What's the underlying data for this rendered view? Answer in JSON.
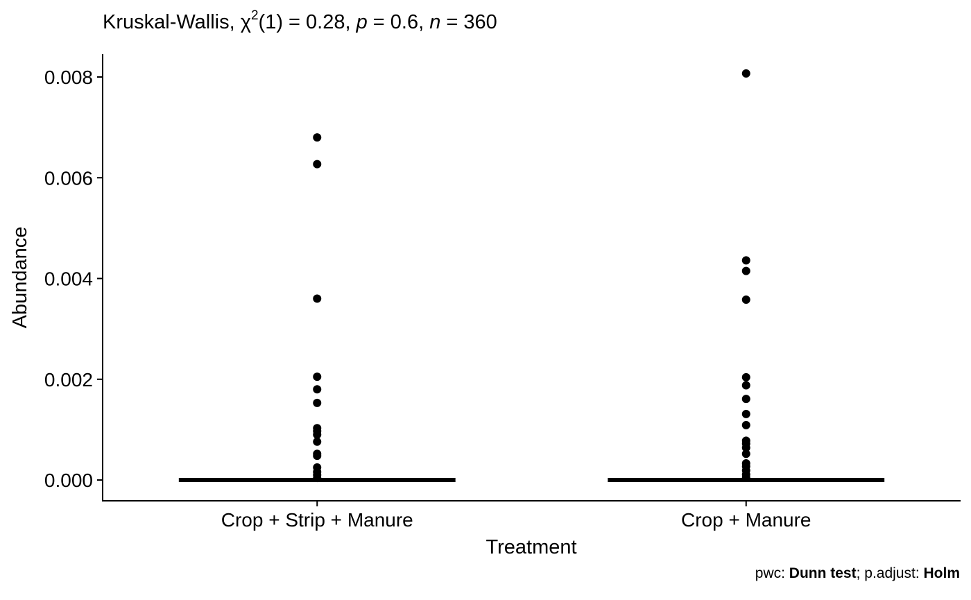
{
  "chart_data": {
    "type": "scatter",
    "title": {
      "test": "Kruskal-Wallis, ",
      "chi": "χ",
      "chi_sup": "2",
      "stat": "(1) = 0.28, ",
      "p_sym": "p",
      "p_val": " = 0.6, ",
      "n_sym": "n",
      "n_val": " = 360"
    },
    "caption": {
      "pwc_label": "pwc: ",
      "pwc_method": "Dunn test",
      "sep": "; p.adjust: ",
      "adjust_method": "Holm"
    },
    "xlabel": "Treatment",
    "ylabel": "Abundance",
    "categories": [
      "Crop + Strip + Manure",
      "Crop + Manure"
    ],
    "ylim": [
      -0.0004,
      0.0085
    ],
    "y_ticks": [
      0,
      0.002,
      0.004,
      0.006,
      0.008
    ],
    "y_tick_labels": [
      "0.000",
      "0.002",
      "0.004",
      "0.006",
      "0.008"
    ],
    "grid": false,
    "legend": "none",
    "series": [
      {
        "category": "Crop + Strip + Manure",
        "boxplot": {
          "q1": 0,
          "median": 0,
          "q3": 0
        },
        "outliers": [
          0.0068,
          0.00627,
          0.0036,
          0.00205,
          0.0018,
          0.00153,
          0.00103,
          0.00097,
          0.0009,
          0.00076,
          0.00052,
          0.00048,
          0.00025,
          0.00016,
          0.0001,
          4e-05
        ]
      },
      {
        "category": "Crop + Manure",
        "boxplot": {
          "q1": 0,
          "median": 0,
          "q3": 0
        },
        "outliers": [
          0.00807,
          0.00436,
          0.00415,
          0.00358,
          0.00204,
          0.00188,
          0.00161,
          0.00131,
          0.00109,
          0.00078,
          0.00072,
          0.00064,
          0.00052,
          0.00033,
          0.00027,
          0.00019,
          0.00011,
          5e-05
        ]
      }
    ]
  }
}
